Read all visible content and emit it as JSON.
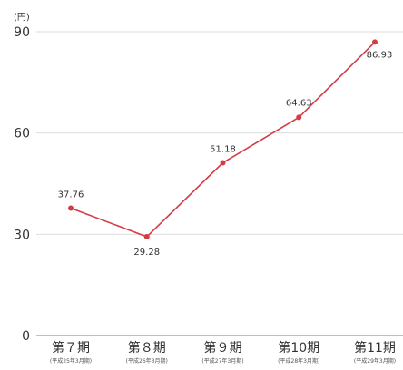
{
  "chart_data": {
    "type": "line",
    "unit_label": "(円)",
    "categories": [
      "第７期",
      "第８期",
      "第９期",
      "第10期",
      "第11期"
    ],
    "category_sublabels": [
      "(平成25年3月期)",
      "(平成26年3月期)",
      "(平成27年3月期)",
      "(平成28年3月期)",
      "(平成29年3月期)"
    ],
    "series": [
      {
        "values": [
          37.76,
          29.28,
          51.18,
          64.63,
          86.93
        ]
      }
    ],
    "data_labels": [
      "37.76",
      "29.28",
      "51.18",
      "64.63",
      "86.93"
    ],
    "ylim": [
      0,
      90
    ],
    "yticks": [
      0,
      30,
      60,
      90
    ],
    "grid": true,
    "line_color": "#d33c45",
    "grid_color": "#dddddd",
    "axis_color": "#999999"
  }
}
